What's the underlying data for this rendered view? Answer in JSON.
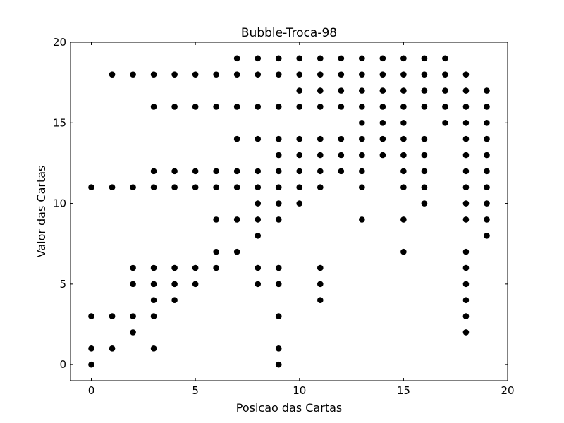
{
  "chart_data": {
    "type": "scatter",
    "title": "Bubble-Troca-98",
    "xlabel": "Posicao das Cartas",
    "ylabel": "Valor das Cartas",
    "xlim": [
      -1,
      20
    ],
    "ylim": [
      -1,
      20
    ],
    "xticks": [
      0,
      5,
      10,
      15,
      20
    ],
    "yticks": [
      0,
      5,
      10,
      15,
      20
    ],
    "marker_color": "#000000",
    "grid": false,
    "series": [
      {
        "points": [
          [
            0,
            0
          ],
          [
            0,
            1
          ],
          [
            0,
            3
          ],
          [
            0,
            11
          ],
          [
            1,
            1
          ],
          [
            1,
            3
          ],
          [
            1,
            11
          ],
          [
            1,
            18
          ],
          [
            2,
            2
          ],
          [
            2,
            3
          ],
          [
            2,
            5
          ],
          [
            2,
            6
          ],
          [
            2,
            11
          ],
          [
            2,
            18
          ],
          [
            3,
            1
          ],
          [
            3,
            3
          ],
          [
            3,
            4
          ],
          [
            3,
            5
          ],
          [
            3,
            6
          ],
          [
            3,
            11
          ],
          [
            3,
            12
          ],
          [
            3,
            16
          ],
          [
            3,
            18
          ],
          [
            4,
            4
          ],
          [
            4,
            5
          ],
          [
            4,
            6
          ],
          [
            4,
            11
          ],
          [
            4,
            12
          ],
          [
            4,
            16
          ],
          [
            4,
            18
          ],
          [
            5,
            5
          ],
          [
            5,
            6
          ],
          [
            5,
            11
          ],
          [
            5,
            12
          ],
          [
            5,
            16
          ],
          [
            5,
            18
          ],
          [
            6,
            6
          ],
          [
            6,
            7
          ],
          [
            6,
            9
          ],
          [
            6,
            11
          ],
          [
            6,
            12
          ],
          [
            6,
            16
          ],
          [
            6,
            18
          ],
          [
            7,
            7
          ],
          [
            7,
            9
          ],
          [
            7,
            11
          ],
          [
            7,
            12
          ],
          [
            7,
            14
          ],
          [
            7,
            16
          ],
          [
            7,
            18
          ],
          [
            7,
            19
          ],
          [
            8,
            5
          ],
          [
            8,
            6
          ],
          [
            8,
            8
          ],
          [
            8,
            9
          ],
          [
            8,
            10
          ],
          [
            8,
            11
          ],
          [
            8,
            12
          ],
          [
            8,
            14
          ],
          [
            8,
            16
          ],
          [
            8,
            18
          ],
          [
            8,
            19
          ],
          [
            9,
            0
          ],
          [
            9,
            1
          ],
          [
            9,
            3
          ],
          [
            9,
            5
          ],
          [
            9,
            6
          ],
          [
            9,
            9
          ],
          [
            9,
            10
          ],
          [
            9,
            11
          ],
          [
            9,
            12
          ],
          [
            9,
            13
          ],
          [
            9,
            14
          ],
          [
            9,
            16
          ],
          [
            9,
            18
          ],
          [
            9,
            19
          ],
          [
            10,
            10
          ],
          [
            10,
            11
          ],
          [
            10,
            12
          ],
          [
            10,
            13
          ],
          [
            10,
            14
          ],
          [
            10,
            16
          ],
          [
            10,
            17
          ],
          [
            10,
            18
          ],
          [
            10,
            19
          ],
          [
            11,
            4
          ],
          [
            11,
            5
          ],
          [
            11,
            6
          ],
          [
            11,
            11
          ],
          [
            11,
            12
          ],
          [
            11,
            13
          ],
          [
            11,
            14
          ],
          [
            11,
            16
          ],
          [
            11,
            17
          ],
          [
            11,
            18
          ],
          [
            11,
            19
          ],
          [
            12,
            12
          ],
          [
            12,
            13
          ],
          [
            12,
            14
          ],
          [
            12,
            16
          ],
          [
            12,
            17
          ],
          [
            12,
            18
          ],
          [
            12,
            19
          ],
          [
            13,
            9
          ],
          [
            13,
            11
          ],
          [
            13,
            12
          ],
          [
            13,
            13
          ],
          [
            13,
            14
          ],
          [
            13,
            15
          ],
          [
            13,
            16
          ],
          [
            13,
            17
          ],
          [
            13,
            18
          ],
          [
            13,
            19
          ],
          [
            14,
            13
          ],
          [
            14,
            14
          ],
          [
            14,
            15
          ],
          [
            14,
            16
          ],
          [
            14,
            17
          ],
          [
            14,
            18
          ],
          [
            14,
            19
          ],
          [
            15,
            7
          ],
          [
            15,
            9
          ],
          [
            15,
            11
          ],
          [
            15,
            12
          ],
          [
            15,
            13
          ],
          [
            15,
            14
          ],
          [
            15,
            15
          ],
          [
            15,
            16
          ],
          [
            15,
            17
          ],
          [
            15,
            18
          ],
          [
            15,
            19
          ],
          [
            16,
            10
          ],
          [
            16,
            11
          ],
          [
            16,
            12
          ],
          [
            16,
            13
          ],
          [
            16,
            14
          ],
          [
            16,
            16
          ],
          [
            16,
            17
          ],
          [
            16,
            18
          ],
          [
            16,
            19
          ],
          [
            17,
            15
          ],
          [
            17,
            16
          ],
          [
            17,
            17
          ],
          [
            17,
            18
          ],
          [
            17,
            19
          ],
          [
            18,
            2
          ],
          [
            18,
            3
          ],
          [
            18,
            4
          ],
          [
            18,
            5
          ],
          [
            18,
            6
          ],
          [
            18,
            7
          ],
          [
            18,
            9
          ],
          [
            18,
            10
          ],
          [
            18,
            11
          ],
          [
            18,
            12
          ],
          [
            18,
            13
          ],
          [
            18,
            14
          ],
          [
            18,
            15
          ],
          [
            18,
            16
          ],
          [
            18,
            17
          ],
          [
            18,
            18
          ],
          [
            19,
            8
          ],
          [
            19,
            9
          ],
          [
            19,
            10
          ],
          [
            19,
            11
          ],
          [
            19,
            12
          ],
          [
            19,
            13
          ],
          [
            19,
            14
          ],
          [
            19,
            15
          ],
          [
            19,
            16
          ],
          [
            19,
            17
          ]
        ]
      }
    ]
  }
}
